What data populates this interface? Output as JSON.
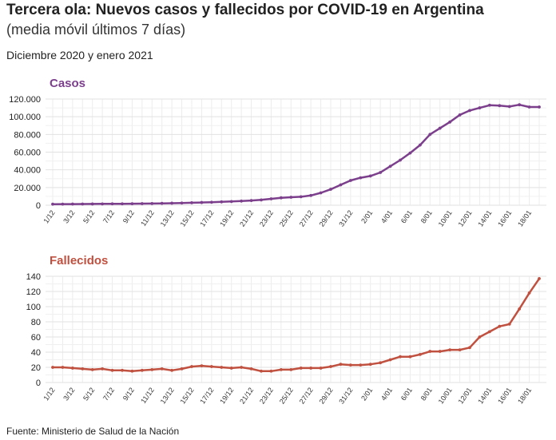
{
  "header": {
    "title": "Tercera ola: Nuevos casos y fallecidos por COVID-19 en Argentina",
    "subtitle": "(media móvil últimos 7 días)",
    "dates": "Diciembre 2020 y enero 2021"
  },
  "footer": {
    "source": "Fuente: Ministerio de Salud de la Nación"
  },
  "chart_data": [
    {
      "type": "line",
      "title": "Casos",
      "color": "#7b3f8c",
      "x": [
        "1/12",
        "2/12",
        "3/12",
        "4/12",
        "5/12",
        "6/12",
        "7/12",
        "8/12",
        "9/12",
        "10/12",
        "11/12",
        "12/12",
        "13/12",
        "14/12",
        "15/12",
        "16/12",
        "17/12",
        "18/12",
        "19/12",
        "20/12",
        "21/12",
        "22/12",
        "23/12",
        "24/12",
        "25/12",
        "26/12",
        "27/12",
        "28/12",
        "29/12",
        "30/12",
        "31/12",
        "1/01",
        "2/01",
        "3/01",
        "4/01",
        "5/01",
        "6/01",
        "7/01",
        "8/01",
        "9/01",
        "10/01",
        "11/01",
        "12/01",
        "13/01",
        "14/01",
        "15/01",
        "16/01",
        "17/01",
        "18/01",
        "19/01"
      ],
      "tick_labels": [
        "1/12",
        "3/12",
        "5/12",
        "7/12",
        "9/12",
        "11/12",
        "13/12",
        "15/12",
        "17/12",
        "19/12",
        "21/12",
        "23/12",
        "25/12",
        "27/12",
        "29/12",
        "31/12",
        "2/01",
        "4/01",
        "6/01",
        "8/01",
        "10/01",
        "12/01",
        "14/01",
        "16/01",
        "18/01"
      ],
      "values": [
        1200,
        1250,
        1300,
        1350,
        1400,
        1500,
        1550,
        1600,
        1700,
        1800,
        1900,
        2100,
        2300,
        2500,
        2800,
        3100,
        3400,
        3800,
        4200,
        4700,
        5300,
        6000,
        7200,
        8400,
        9000,
        9600,
        11000,
        14000,
        18000,
        23000,
        28000,
        31000,
        33000,
        37000,
        44000,
        51000,
        59000,
        68000,
        80000,
        87000,
        94000,
        102000,
        107000,
        110000,
        113000,
        112500,
        111500,
        113500,
        111000,
        111000
      ],
      "ylim": [
        0,
        120000
      ],
      "yticks": [
        "0",
        "20.000",
        "40.000",
        "60.000",
        "80.000",
        "100.000",
        "120.000"
      ]
    },
    {
      "type": "line",
      "title": "Fallecidos",
      "color": "#c0503f",
      "x": [
        "1/12",
        "2/12",
        "3/12",
        "4/12",
        "5/12",
        "6/12",
        "7/12",
        "8/12",
        "9/12",
        "10/12",
        "11/12",
        "12/12",
        "13/12",
        "14/12",
        "15/12",
        "16/12",
        "17/12",
        "18/12",
        "19/12",
        "20/12",
        "21/12",
        "22/12",
        "23/12",
        "24/12",
        "25/12",
        "26/12",
        "27/12",
        "28/12",
        "29/12",
        "30/12",
        "31/12",
        "1/01",
        "2/01",
        "3/01",
        "4/01",
        "5/01",
        "6/01",
        "7/01",
        "8/01",
        "9/01",
        "10/01",
        "11/01",
        "12/01",
        "13/01",
        "14/01",
        "15/01",
        "16/01",
        "17/01",
        "18/01",
        "19/01"
      ],
      "tick_labels": [
        "1/12",
        "3/12",
        "5/12",
        "7/12",
        "9/12",
        "11/12",
        "13/12",
        "15/12",
        "17/12",
        "19/12",
        "21/12",
        "23/12",
        "25/12",
        "27/12",
        "29/12",
        "31/12",
        "2/01",
        "4/01",
        "6/01",
        "8/01",
        "10/01",
        "12/01",
        "14/01",
        "16/01",
        "18/01"
      ],
      "values": [
        20,
        20,
        19,
        18,
        17,
        18,
        16,
        16,
        15,
        16,
        17,
        18,
        16,
        18,
        21,
        22,
        21,
        20,
        19,
        20,
        18,
        15,
        15,
        17,
        17,
        19,
        19,
        19,
        21,
        24,
        23,
        23,
        24,
        26,
        30,
        34,
        34,
        37,
        41,
        41,
        43,
        43,
        46,
        60,
        67,
        74,
        77,
        97,
        118,
        137
      ],
      "ylim": [
        0,
        140
      ],
      "yticks": [
        "0",
        "20",
        "40",
        "60",
        "80",
        "100",
        "120",
        "140"
      ]
    }
  ]
}
